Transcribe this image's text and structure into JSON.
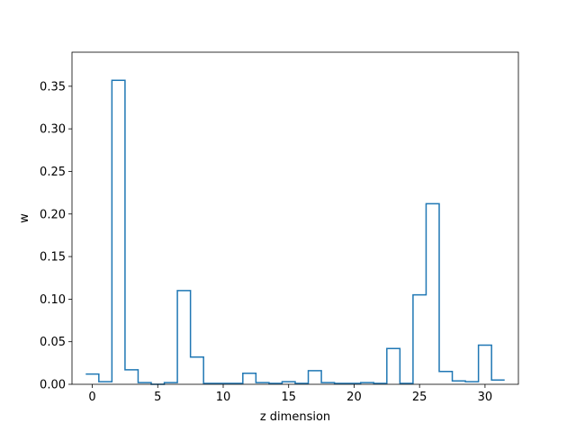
{
  "chart_data": {
    "type": "line",
    "style": "step",
    "xlabel": "z dimension",
    "ylabel": "w",
    "title": "",
    "xlim": [
      -1.55,
      32.55
    ],
    "ylim": [
      0,
      0.39
    ],
    "x_ticks": [
      0,
      5,
      10,
      15,
      20,
      25,
      30
    ],
    "x_tick_labels": [
      "0",
      "5",
      "10",
      "15",
      "20",
      "25",
      "30"
    ],
    "y_ticks": [
      0.0,
      0.05,
      0.1,
      0.15,
      0.2,
      0.25,
      0.3,
      0.35
    ],
    "y_tick_labels": [
      "0.00",
      "0.05",
      "0.10",
      "0.15",
      "0.20",
      "0.25",
      "0.30",
      "0.35"
    ],
    "grid": false,
    "line_color": "#1f77b4",
    "x": [
      0,
      1,
      2,
      3,
      4,
      5,
      6,
      7,
      8,
      9,
      10,
      11,
      12,
      13,
      14,
      15,
      16,
      17,
      18,
      19,
      20,
      21,
      22,
      23,
      24,
      25,
      26,
      27,
      28,
      29,
      30,
      31
    ],
    "values": [
      0.012,
      0.003,
      0.357,
      0.017,
      0.002,
      0.0,
      0.002,
      0.11,
      0.032,
      0.001,
      0.001,
      0.001,
      0.013,
      0.002,
      0.001,
      0.003,
      0.001,
      0.016,
      0.002,
      0.001,
      0.001,
      0.002,
      0.001,
      0.042,
      0.001,
      0.105,
      0.212,
      0.015,
      0.004,
      0.003,
      0.046,
      0.005
    ]
  }
}
